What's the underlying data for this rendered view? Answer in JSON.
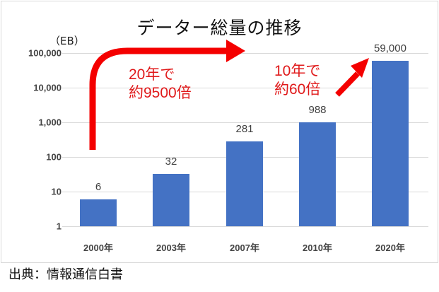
{
  "chart_data": {
    "type": "bar",
    "title": "データー総量の推移",
    "unit_label": "（EB）",
    "xlabel": "",
    "ylabel": "EB",
    "y_scale": "log",
    "ylim": [
      1,
      100000
    ],
    "y_ticks": [
      "100,000",
      "10,000",
      "1,000",
      "100",
      "10",
      "1"
    ],
    "categories": [
      "2000年",
      "2003年",
      "2007年",
      "2010年",
      "2020年"
    ],
    "values": [
      6,
      32,
      281,
      988,
      59000
    ],
    "value_labels": [
      "6",
      "32",
      "281",
      "988",
      "59,000"
    ],
    "bar_color": "#4472c4",
    "grid": true,
    "legend": null,
    "annotations": [
      {
        "text_line1": "20年で",
        "text_line2": "約9500倍",
        "color": "#e0191a",
        "arrow": "curved, from 2000 bar up and right"
      },
      {
        "text_line1": "10年で",
        "text_line2": "約60倍",
        "color": "#e0191a",
        "arrow": "diagonal, toward 2020 bar top"
      }
    ]
  },
  "source": "出典：情報通信白書"
}
